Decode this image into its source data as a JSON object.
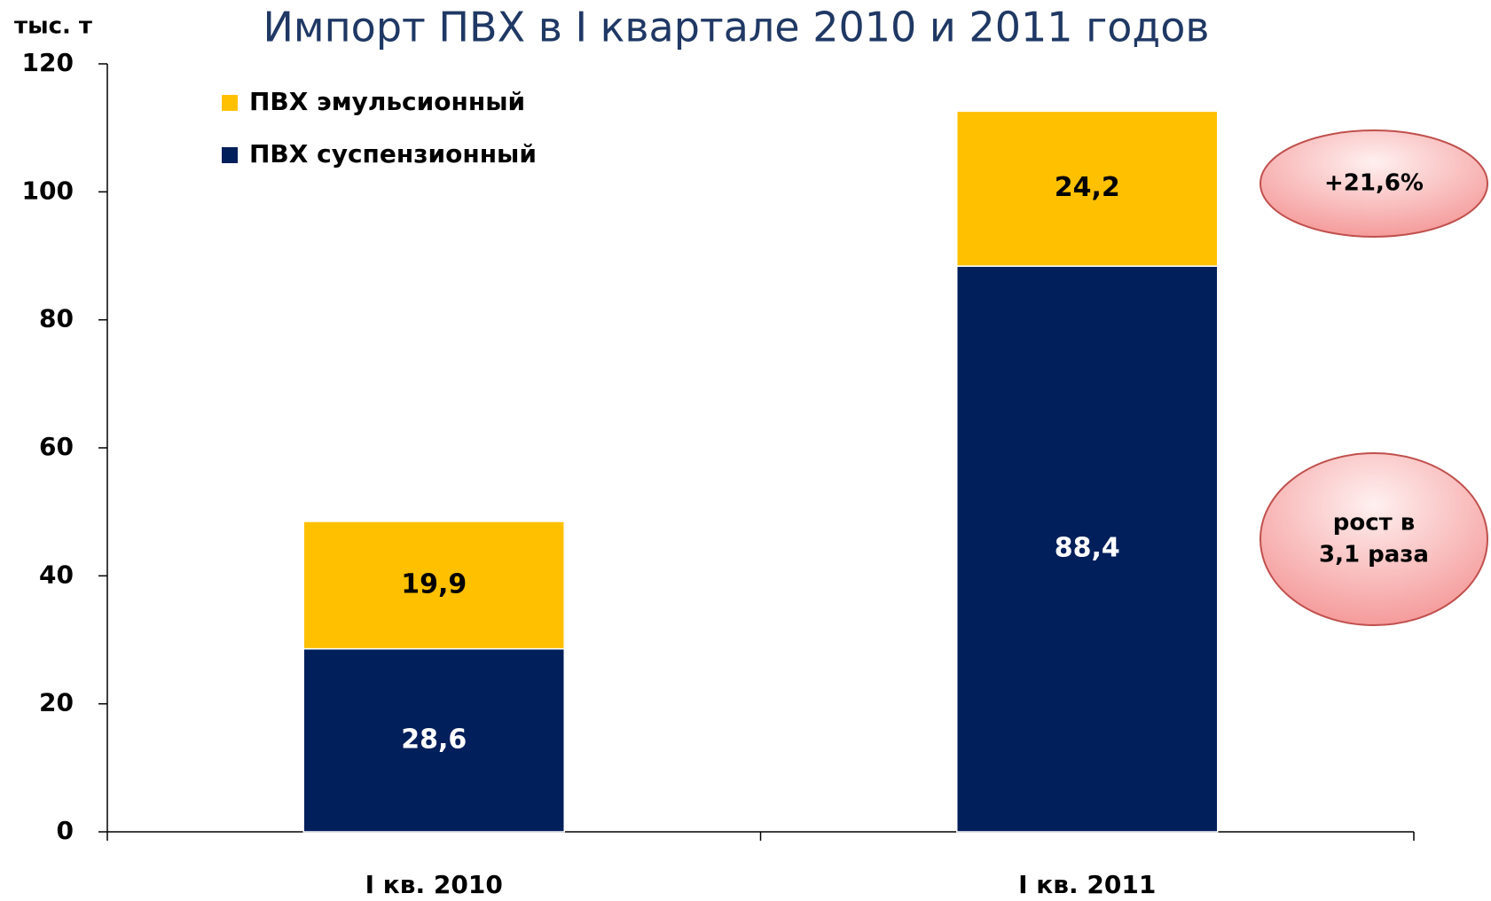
{
  "chart_data": {
    "type": "stacked_bar",
    "title": "Импорт ПВХ в I квартале 2010 и 2011 годов",
    "y_axis_label": "тыс. т",
    "categories": [
      "I кв. 2010",
      "I кв. 2011"
    ],
    "series": [
      {
        "name": "ПВХ суспензионный",
        "color": "#001f5b",
        "label_color": "#ffffff",
        "values": [
          28.6,
          88.4
        ],
        "value_labels": [
          "28,6",
          "88,4"
        ]
      },
      {
        "name": "ПВХ эмульсионный",
        "color": "#ffc000",
        "label_color": "#000000",
        "values": [
          19.9,
          24.2
        ],
        "value_labels": [
          "19,9",
          "24,2"
        ]
      }
    ],
    "ylim": [
      0,
      120
    ],
    "yticks": [
      0,
      20,
      40,
      60,
      80,
      100,
      120
    ],
    "grid": false,
    "legend": "top-left",
    "annotations": [
      [
        "+21,6%"
      ],
      [
        "рост в",
        "3,1 раза"
      ]
    ]
  }
}
